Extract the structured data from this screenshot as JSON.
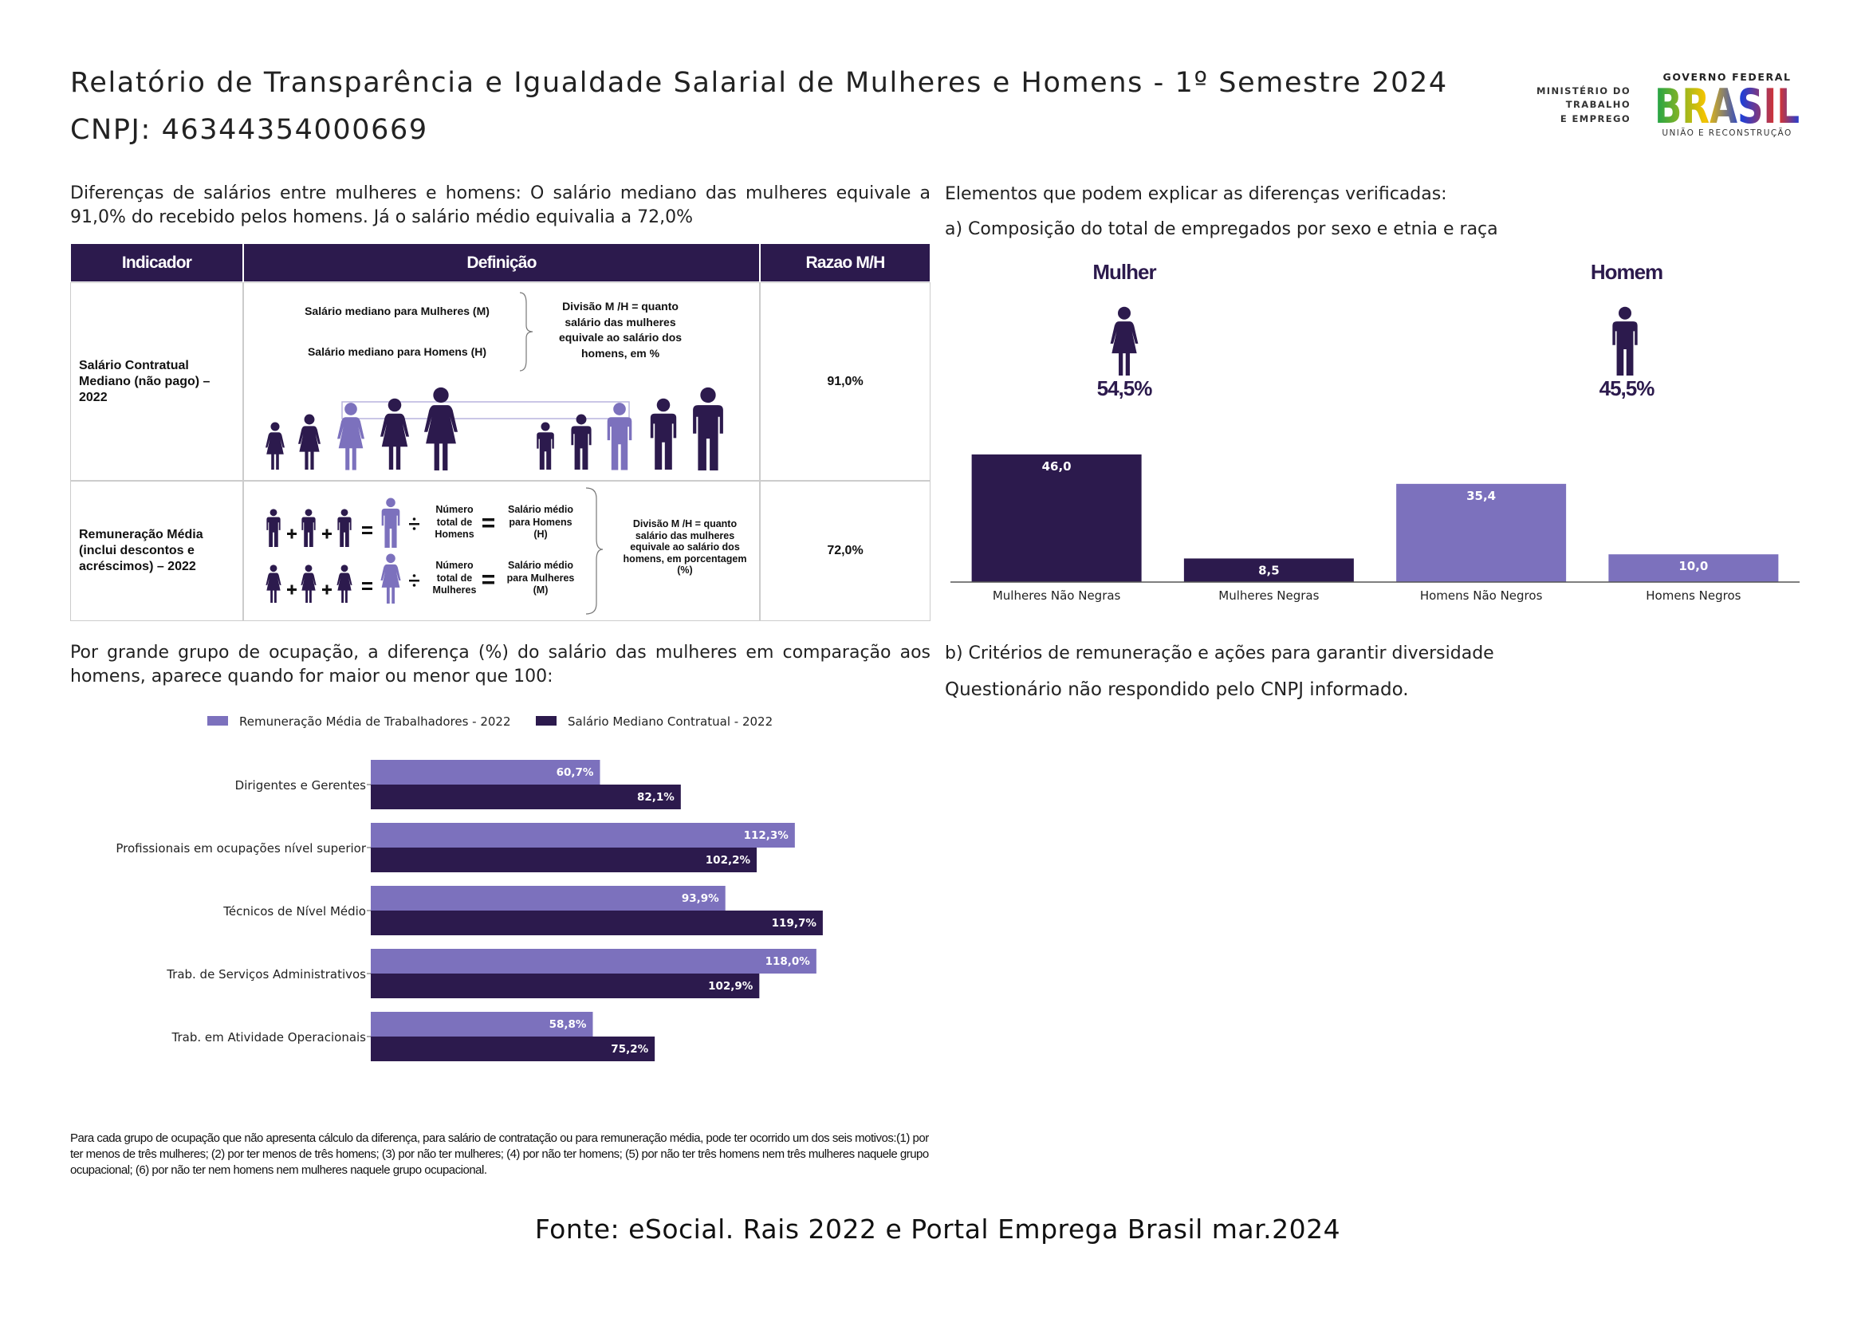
{
  "header": {
    "title": "Relatório de Transparência e Igualdade Salarial de Mulheres e Homens - 1º Semestre 2024",
    "cnpj": "CNPJ: 46344354000669",
    "ministry": [
      "MINISTÉRIO DO",
      "TRABALHO",
      "E EMPREGO"
    ],
    "government": "GOVERNO FEDERAL",
    "brand": "BRASIL",
    "slogan": "UNIÃO E RECONSTRUÇÃO"
  },
  "intro": "Diferenças de salários entre mulheres e homens: O salário mediano das mulheres equivale a 91,0% do recebido pelos homens. Já o salário médio equivalia a 72,0%",
  "table": {
    "columns": [
      "Indicador",
      "Definição",
      "Razao M/H"
    ],
    "rows": [
      {
        "indicator": "Salário Contratual Mediano (não pago) – 2022",
        "definition": {
          "women": "Salário mediano para Mulheres (M)",
          "men": "Salário mediano para Homens (H)",
          "division": "Divisão M /H = quanto salário das mulheres equivale ao salário dos homens, em %"
        },
        "ratio": "91,0%"
      },
      {
        "indicator": "Remuneração Média (inclui descontos e acréscimos) – 2022",
        "definition": {
          "men_count": "Número total de Homens",
          "men_salary": "Salário médio para Homens (H)",
          "women_count": "Número total de Mulheres",
          "women_salary": "Salário médio para Mulheres (M)",
          "division": "Divisão M /H = quanto salário das mulheres equivale ao salário dos homens, em porcentagem (%)"
        },
        "ratio": "72,0%"
      }
    ]
  },
  "occupation_intro": "Por grande grupo de ocupação, a diferença (%) do salário das mulheres em comparação aos homens, aparece quando for maior ou menor que 100:",
  "explain_title": "Elementos que podem explicar as diferenças verificadas:",
  "composition_title": "a) Composição do total de empregados por sexo e etnia e raça",
  "diversity_title": "b) Critérios de remuneração e ações para garantir diversidade",
  "diversity_text": "Questionário não respondido pelo CNPJ informado.",
  "footnote": "Para cada grupo de ocupação que não apresenta cálculo da diferença, para salário de contratação ou para remuneração média, pode ter ocorrido um dos seis motivos:(1) por ter menos de três mulheres; (2) por ter menos de três homens; (3) por não ter mulheres; (4) por não ter homens; (5) por não ter três homens nem três mulheres naquele grupo ocupacional; (6) por não ter nem homens nem mulheres naquele grupo ocupacional.",
  "source": "Fonte: eSocial. Rais 2022 e Portal Emprega Brasil mar.2024",
  "chart_data": [
    {
      "type": "bar",
      "groups": [
        {
          "label": "Mulher",
          "share": "54,5%"
        },
        {
          "label": "Homem",
          "share": "45,5%"
        }
      ],
      "categories": [
        "Mulheres Não Negras",
        "Mulheres Negras",
        "Homens Não Negros",
        "Homens Negros"
      ],
      "values": [
        46.0,
        8.5,
        35.4,
        10.0
      ],
      "value_labels": [
        "46,0",
        "8,5",
        "35,4",
        "10,0"
      ],
      "colors": [
        "#2c1a4d",
        "#2c1a4d",
        "#7c71bd",
        "#7c71bd"
      ],
      "ylim": [
        0,
        48
      ]
    },
    {
      "type": "barh",
      "categories": [
        "Dirigentes e Gerentes",
        "Profissionais em ocupações nível superior",
        "Técnicos de Nível Médio",
        "Trab. de Serviços Administrativos",
        "Trab. em Atividade Operacionais"
      ],
      "series": [
        {
          "name": "Remuneração Média de Trabalhadores - 2022",
          "color": "#7c71bd",
          "values": [
            60.7,
            112.3,
            93.9,
            118.0,
            58.8
          ],
          "value_labels": [
            "60,7%",
            "112,3%",
            "93,9%",
            "118,0%",
            "58,8%"
          ]
        },
        {
          "name": "Salário Mediano Contratual - 2022",
          "color": "#2c1a4d",
          "values": [
            82.1,
            102.2,
            119.7,
            102.9,
            75.2
          ],
          "value_labels": [
            "82,1%",
            "102,2%",
            "119,7%",
            "102,9%",
            "75,2%"
          ]
        }
      ],
      "xlim": [
        0,
        125
      ],
      "legend": "top"
    }
  ]
}
